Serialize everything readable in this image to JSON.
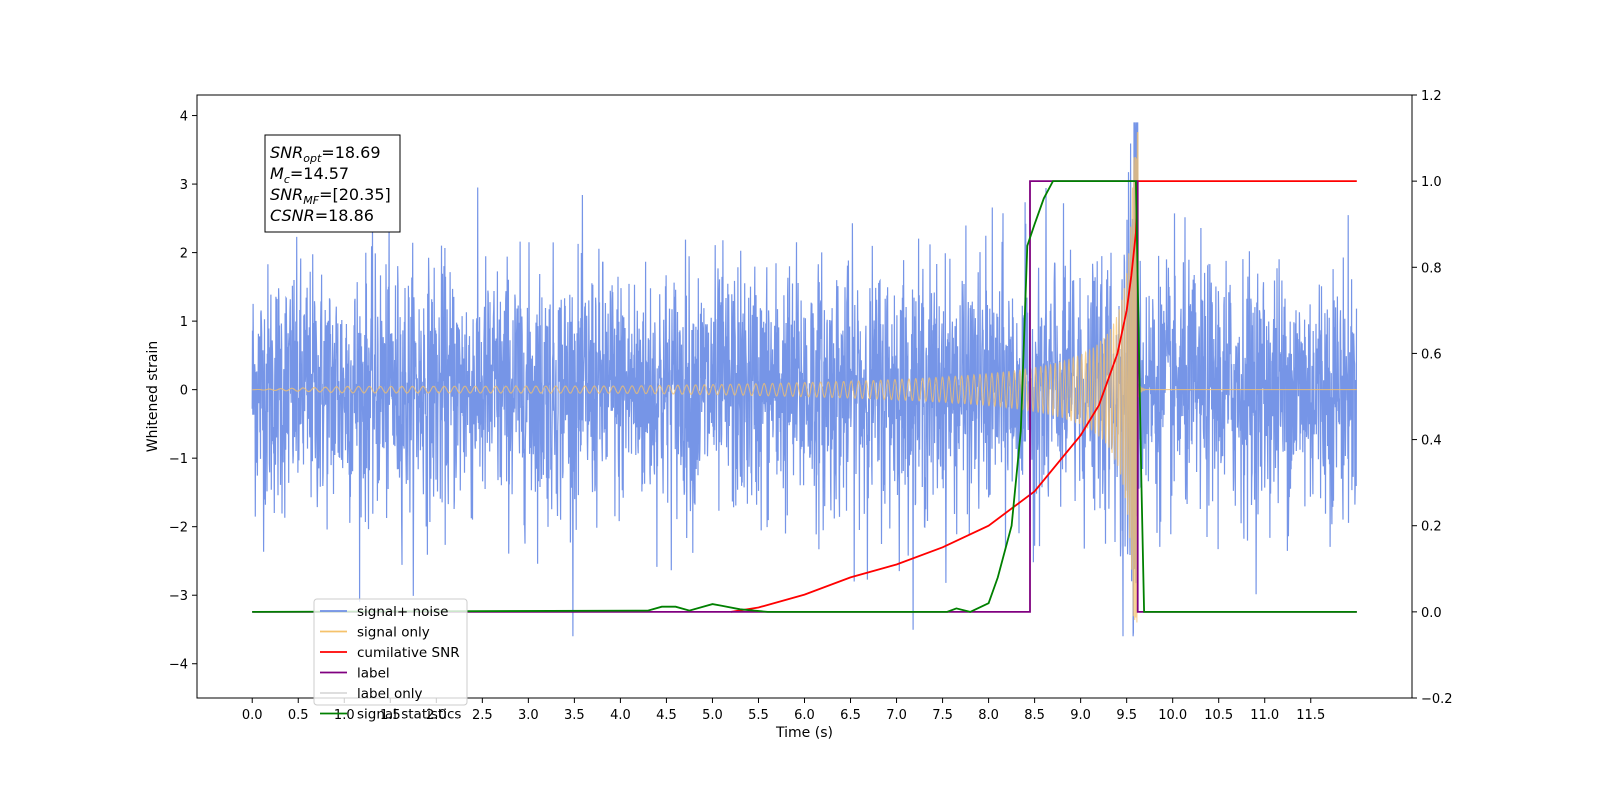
{
  "chart_data": {
    "type": "line",
    "xlabel": "Time (s)",
    "ylabel_left": "Whitened strain",
    "ylabel_right": "",
    "xlim": [
      -0.6,
      12.6
    ],
    "ylim_left": [
      -4.5,
      4.3
    ],
    "ylim_right": [
      -0.2,
      1.2
    ],
    "x_ticks": [
      0.0,
      0.5,
      1.0,
      1.5,
      2.0,
      2.5,
      3.0,
      3.5,
      4.0,
      4.5,
      5.0,
      5.5,
      6.0,
      6.5,
      7.0,
      7.5,
      8.0,
      8.5,
      9.0,
      9.5,
      10.0,
      10.5,
      11.0,
      11.5
    ],
    "x_tick_labels": [
      "0.0",
      "0.5",
      "1.0",
      "1.5",
      "2.0",
      "2.5",
      "3.0",
      "3.5",
      "4.0",
      "4.5",
      "5.0",
      "5.5",
      "6.0",
      "6.5",
      "7.0",
      "7.5",
      "8.0",
      "8.5",
      "9.0",
      "9.5",
      "10.0",
      "10.5",
      "11.0",
      "11.5"
    ],
    "y_left_ticks": [
      4,
      3,
      2,
      1,
      0,
      -1,
      -2,
      -3,
      -4
    ],
    "y_left_tick_labels": [
      "4",
      "3",
      "2",
      "1",
      "0",
      "−1",
      "−2",
      "−3",
      "−4"
    ],
    "y_right_ticks": [
      1.2,
      1.0,
      0.8,
      0.6,
      0.4,
      0.2,
      0.0,
      -0.2
    ],
    "y_right_tick_labels": [
      "1.2",
      "1.0",
      "0.8",
      "0.6",
      "0.4",
      "0.2",
      "0.0",
      "−0.2"
    ],
    "grid": false,
    "legend_position": "lower-left",
    "annotation": {
      "lines": [
        {
          "main": "SNR",
          "sub": "opt",
          "rest": "=18.69"
        },
        {
          "main": "M",
          "sub": "c",
          "rest": "=14.57"
        },
        {
          "main": "SNR",
          "sub": "MF",
          "rest": "=[20.35]"
        },
        {
          "main": "CSNR",
          "sub": "",
          "rest": "=18.86"
        }
      ]
    },
    "series": [
      {
        "name": "signal+ noise",
        "axis": "left",
        "color": "#6f8fe6",
        "description_hidden": true,
        "x_range": [
          0.0,
          12.0
        ],
        "amplitude_envelope": [
          -3.6,
          3.9
        ]
      },
      {
        "name": "signal only",
        "axis": "left",
        "color": "#f5c26b",
        "x_range": [
          0.0,
          12.0
        ],
        "merger_time": 9.62,
        "peak_value": 3.75
      },
      {
        "name": "cumilative SNR",
        "axis": "right",
        "color": "#ff0000",
        "x": [
          5.2,
          5.5,
          6.0,
          6.5,
          7.0,
          7.5,
          8.0,
          8.5,
          9.0,
          9.2,
          9.4,
          9.5,
          9.55,
          9.6,
          9.62,
          12.0
        ],
        "y": [
          0.0,
          0.01,
          0.04,
          0.08,
          0.11,
          0.15,
          0.2,
          0.28,
          0.41,
          0.48,
          0.6,
          0.7,
          0.78,
          0.88,
          1.0,
          1.0
        ]
      },
      {
        "name": "label",
        "axis": "right",
        "color": "#800080",
        "x": [
          0.0,
          8.45,
          8.45,
          9.62,
          9.62,
          12.0
        ],
        "y": [
          0.0,
          0.0,
          1.0,
          1.0,
          0.0,
          0.0
        ]
      },
      {
        "name": "label only",
        "axis": "right",
        "color": "#d9d9d9",
        "legend_only": true
      },
      {
        "name": "signal statistics",
        "axis": "right",
        "color": "#008000",
        "x": [
          0.0,
          4.3,
          4.45,
          4.6,
          4.75,
          5.0,
          5.1,
          5.3,
          5.6,
          7.55,
          7.65,
          7.8,
          8.0,
          8.1,
          8.25,
          8.35,
          8.42,
          8.5,
          8.6,
          8.7,
          8.85,
          9.6,
          9.66,
          9.69,
          12.0
        ],
        "y": [
          0.0,
          0.003,
          0.012,
          0.012,
          0.003,
          0.018,
          0.014,
          0.006,
          0.0,
          0.0,
          0.008,
          0.0,
          0.02,
          0.08,
          0.2,
          0.42,
          0.85,
          0.9,
          0.96,
          1.0,
          1.0,
          1.0,
          0.3,
          0.0,
          0.0
        ]
      }
    ]
  }
}
